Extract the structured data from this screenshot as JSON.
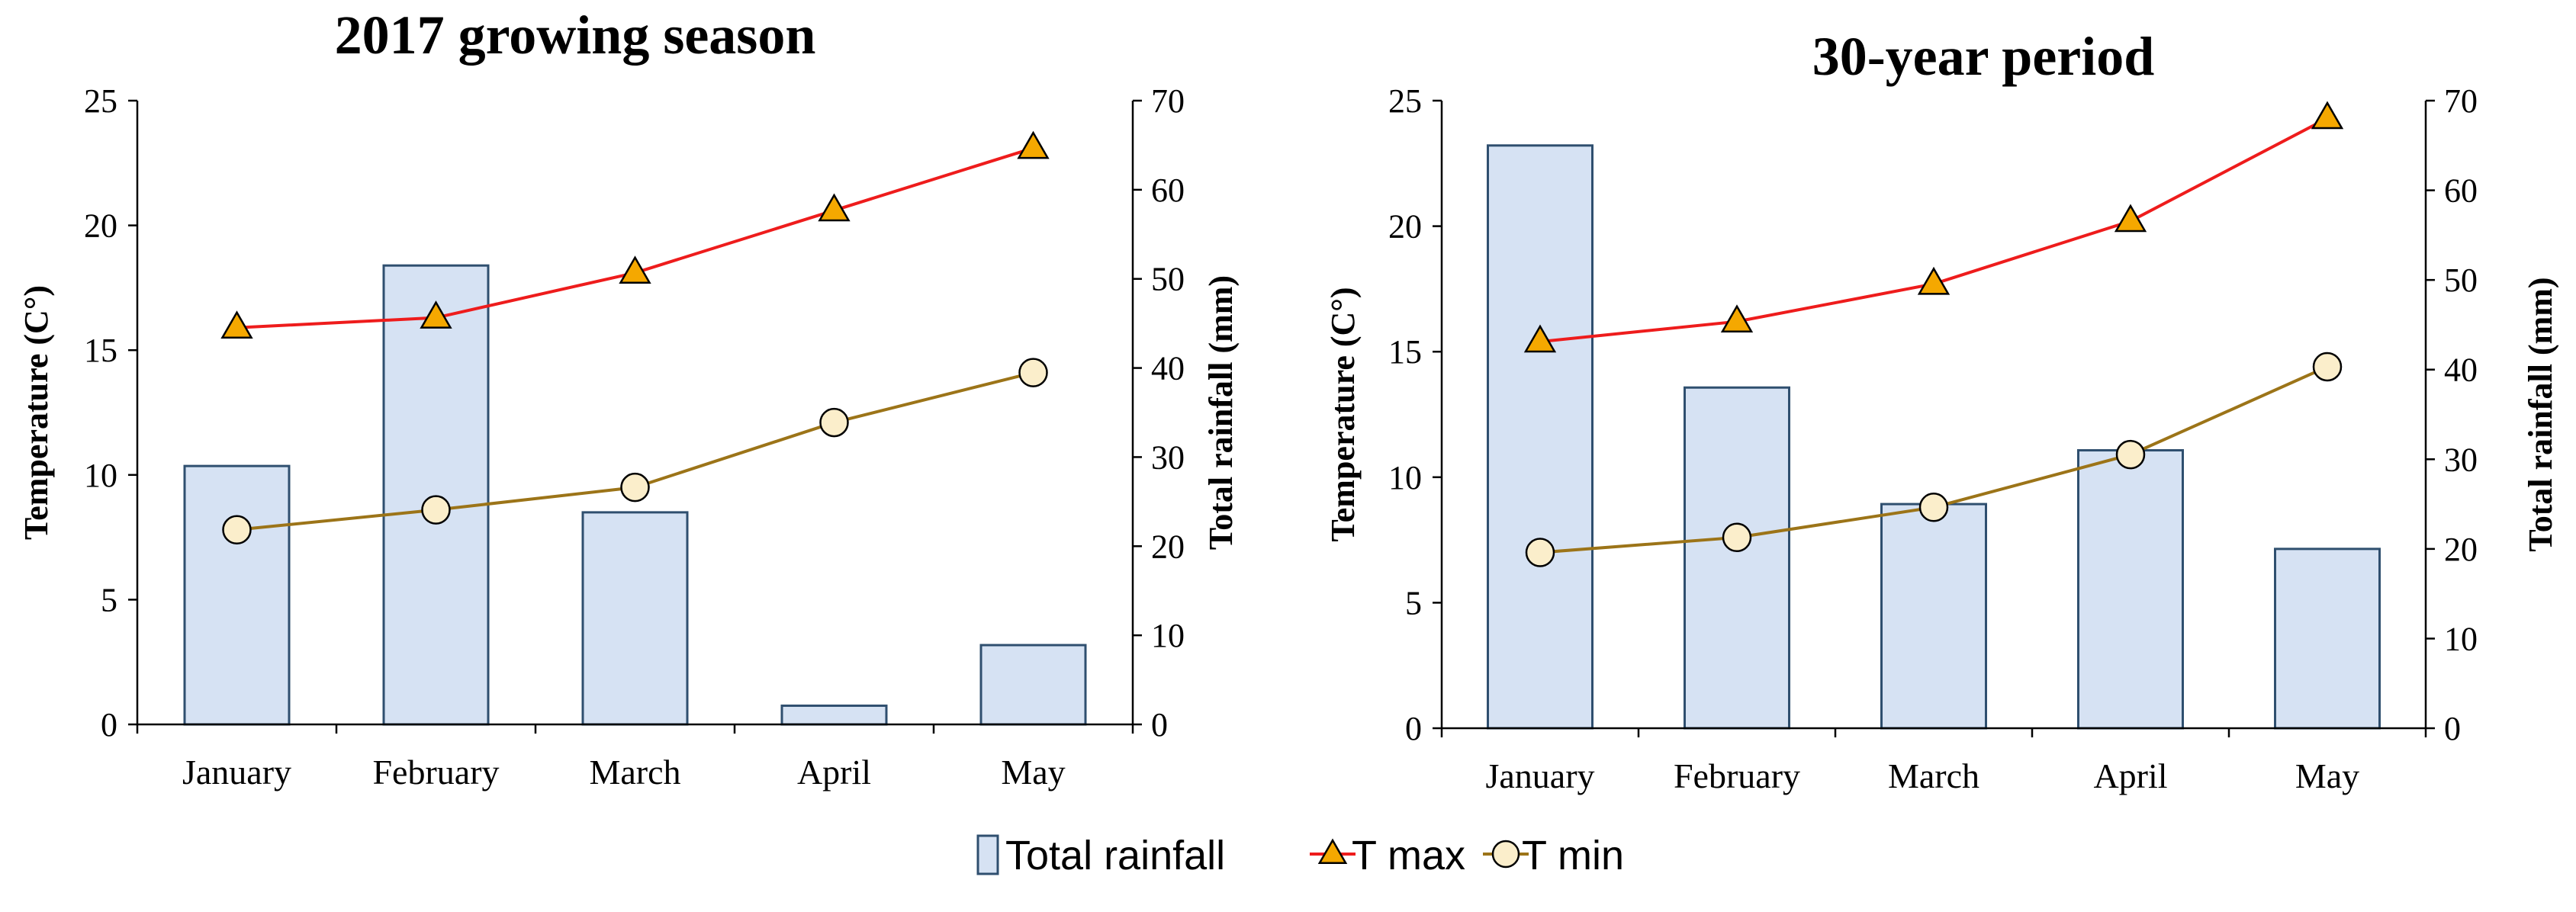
{
  "colors": {
    "bar_fill": "#d6e2f3",
    "bar_stroke": "#2f4f6f",
    "tmax_line": "#ee1c1c",
    "tmax_marker": "#f5a800",
    "tmin_line": "#9c7418",
    "tmin_marker": "#fbeecb",
    "axis": "#000000"
  },
  "legend": {
    "rainfall_label": "Total rainfall",
    "tmax_label": "T max",
    "tmin_label": "T min"
  },
  "chart_data": [
    {
      "type": "bar+line",
      "title": "2017 growing season",
      "categories": [
        "January",
        "February",
        "March",
        "April",
        "May"
      ],
      "ylabel_left": "Temperature (C°)",
      "ylabel_right": "Total rainfall (mm)",
      "ylim_left": [
        0,
        25
      ],
      "ylim_right": [
        0,
        70
      ],
      "yticks_left": [
        0,
        5,
        10,
        15,
        20,
        25
      ],
      "yticks_right": [
        0,
        10,
        20,
        30,
        40,
        50,
        60,
        70
      ],
      "series": [
        {
          "name": "Total rainfall",
          "kind": "bar",
          "axis": "right",
          "values": [
            29,
            51.5,
            23.8,
            2.1,
            8.9
          ]
        },
        {
          "name": "T max",
          "kind": "line",
          "axis": "left",
          "marker": "triangle",
          "values": [
            15.9,
            16.3,
            18.1,
            20.6,
            23.1
          ]
        },
        {
          "name": "T min",
          "kind": "line",
          "axis": "left",
          "marker": "circle",
          "values": [
            7.8,
            8.6,
            9.5,
            12.1,
            14.1
          ]
        }
      ]
    },
    {
      "type": "bar+line",
      "title": "30-year period",
      "categories": [
        "January",
        "February",
        "March",
        "April",
        "May"
      ],
      "ylabel_left": "Temperature (C°)",
      "ylabel_right": "Total rainfall (mm)",
      "ylim_left": [
        0,
        25
      ],
      "ylim_right": [
        0,
        70
      ],
      "yticks_left": [
        0,
        5,
        10,
        15,
        20,
        25
      ],
      "yticks_right": [
        0,
        10,
        20,
        30,
        40,
        50,
        60,
        70
      ],
      "series": [
        {
          "name": "Total rainfall",
          "kind": "bar",
          "axis": "right",
          "values": [
            65,
            38,
            25,
            31,
            20
          ]
        },
        {
          "name": "T max",
          "kind": "line",
          "axis": "left",
          "marker": "triangle",
          "values": [
            15.4,
            16.2,
            17.7,
            20.2,
            24.3
          ]
        },
        {
          "name": "T min",
          "kind": "line",
          "axis": "left",
          "marker": "circle",
          "values": [
            7.0,
            7.6,
            8.8,
            10.9,
            14.4
          ]
        }
      ]
    }
  ]
}
